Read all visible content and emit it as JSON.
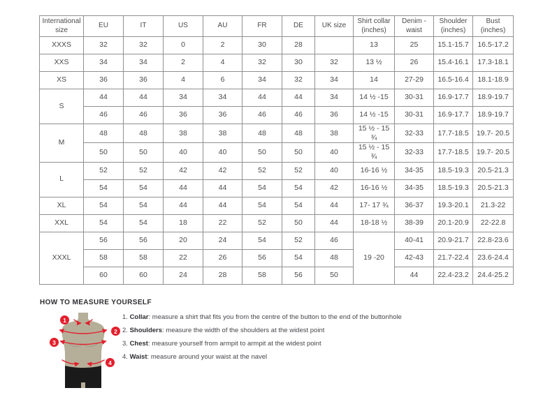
{
  "colors": {
    "accent_red": "#e41e2c",
    "body_tan": "#b5af99",
    "shorts_black": "#1a1a1a",
    "table_border": "#909090",
    "text_dark": "#4b4b4b",
    "heading_color": "#2d2d31"
  },
  "table": {
    "columns": [
      "International size",
      "EU",
      "IT",
      "US",
      "AU",
      "FR",
      "DE",
      "UK size",
      "Shirt collar (inches)",
      "Denim - waist",
      "Shoulder (inches)",
      "Bust (inches)"
    ],
    "rows": [
      {
        "cells": [
          {
            "t": "XXXS"
          },
          {
            "t": "32"
          },
          {
            "t": "32"
          },
          {
            "t": "0"
          },
          {
            "t": "2"
          },
          {
            "t": "30"
          },
          {
            "t": "28"
          },
          {
            "t": ""
          },
          {
            "t": "13"
          },
          {
            "t": "25"
          },
          {
            "t": "15.1-15.7"
          },
          {
            "t": "16.5-17.2"
          }
        ]
      },
      {
        "cells": [
          {
            "t": "XXS"
          },
          {
            "t": "34"
          },
          {
            "t": "34"
          },
          {
            "t": "2"
          },
          {
            "t": "4"
          },
          {
            "t": "32"
          },
          {
            "t": "30"
          },
          {
            "t": "32"
          },
          {
            "t": "13 ½"
          },
          {
            "t": "26"
          },
          {
            "t": "15.4-16.1"
          },
          {
            "t": "17.3-18.1"
          }
        ]
      },
      {
        "cells": [
          {
            "t": "XS"
          },
          {
            "t": "36"
          },
          {
            "t": "36"
          },
          {
            "t": "4"
          },
          {
            "t": "6"
          },
          {
            "t": "34"
          },
          {
            "t": "32"
          },
          {
            "t": "34"
          },
          {
            "t": "14"
          },
          {
            "t": "27-29"
          },
          {
            "t": "16.5-16.4"
          },
          {
            "t": "18.1-18.9"
          }
        ]
      },
      {
        "cells": [
          {
            "t": "S",
            "rs": 2
          },
          {
            "t": "44"
          },
          {
            "t": "44"
          },
          {
            "t": "34"
          },
          {
            "t": "34"
          },
          {
            "t": "44"
          },
          {
            "t": "44"
          },
          {
            "t": "34"
          },
          {
            "t": "14 ½ -15"
          },
          {
            "t": "30-31"
          },
          {
            "t": "16.9-17.7"
          },
          {
            "t": "18.9-19.7"
          }
        ]
      },
      {
        "cells": [
          {
            "t": "46"
          },
          {
            "t": "46"
          },
          {
            "t": "36"
          },
          {
            "t": "36"
          },
          {
            "t": "46"
          },
          {
            "t": "46"
          },
          {
            "t": "36"
          },
          {
            "t": "14 ½ -15"
          },
          {
            "t": "30-31"
          },
          {
            "t": "16.9-17.7"
          },
          {
            "t": "18.9-19.7"
          }
        ]
      },
      {
        "cells": [
          {
            "t": "M",
            "rs": 2
          },
          {
            "t": "48"
          },
          {
            "t": "48"
          },
          {
            "t": "38"
          },
          {
            "t": "38"
          },
          {
            "t": "48"
          },
          {
            "t": "48"
          },
          {
            "t": "38"
          },
          {
            "t": "15 ½ - 15 ¾"
          },
          {
            "t": "32-33"
          },
          {
            "t": "17.7-18.5"
          },
          {
            "t": "19.7- 20.5"
          }
        ]
      },
      {
        "cells": [
          {
            "t": "50"
          },
          {
            "t": "50"
          },
          {
            "t": "40"
          },
          {
            "t": "40"
          },
          {
            "t": "50"
          },
          {
            "t": "50"
          },
          {
            "t": "40"
          },
          {
            "t": "15 ½ - 15 ¾"
          },
          {
            "t": "32-33"
          },
          {
            "t": "17.7-18.5"
          },
          {
            "t": "19.7- 20.5"
          }
        ]
      },
      {
        "cells": [
          {
            "t": "L",
            "rs": 2
          },
          {
            "t": "52"
          },
          {
            "t": "52"
          },
          {
            "t": "42"
          },
          {
            "t": "42"
          },
          {
            "t": "52"
          },
          {
            "t": "52"
          },
          {
            "t": "40"
          },
          {
            "t": "16-16 ½"
          },
          {
            "t": "34-35"
          },
          {
            "t": "18.5-19.3"
          },
          {
            "t": "20.5-21.3"
          }
        ]
      },
      {
        "cells": [
          {
            "t": "54"
          },
          {
            "t": "54"
          },
          {
            "t": "44"
          },
          {
            "t": "44"
          },
          {
            "t": "54"
          },
          {
            "t": "54"
          },
          {
            "t": "42"
          },
          {
            "t": "16-16 ½"
          },
          {
            "t": "34-35"
          },
          {
            "t": "18.5-19.3"
          },
          {
            "t": "20.5-21.3"
          }
        ]
      },
      {
        "cells": [
          {
            "t": "XL"
          },
          {
            "t": "54"
          },
          {
            "t": "54"
          },
          {
            "t": "44"
          },
          {
            "t": "44"
          },
          {
            "t": "54"
          },
          {
            "t": "54"
          },
          {
            "t": "44"
          },
          {
            "t": "17- 17 ¾"
          },
          {
            "t": "36-37"
          },
          {
            "t": "19.3-20.1"
          },
          {
            "t": "21.3-22"
          }
        ]
      },
      {
        "cells": [
          {
            "t": "XXL"
          },
          {
            "t": "54"
          },
          {
            "t": "54"
          },
          {
            "t": "18"
          },
          {
            "t": "22"
          },
          {
            "t": "52"
          },
          {
            "t": "50"
          },
          {
            "t": "44"
          },
          {
            "t": "18-18 ½"
          },
          {
            "t": "38-39"
          },
          {
            "t": "20.1-20.9"
          },
          {
            "t": "22-22.8"
          }
        ]
      },
      {
        "cells": [
          {
            "t": "XXXL",
            "rs": 3
          },
          {
            "t": "56"
          },
          {
            "t": "56"
          },
          {
            "t": "20"
          },
          {
            "t": "24"
          },
          {
            "t": "54"
          },
          {
            "t": "52"
          },
          {
            "t": "46"
          },
          {
            "t": "19 -20",
            "rs": 3
          },
          {
            "t": "40-41"
          },
          {
            "t": "20.9-21.7"
          },
          {
            "t": "22.8-23.6"
          }
        ]
      },
      {
        "cells": [
          {
            "t": "58"
          },
          {
            "t": "58"
          },
          {
            "t": "22"
          },
          {
            "t": "26"
          },
          {
            "t": "56"
          },
          {
            "t": "54"
          },
          {
            "t": "48"
          },
          {
            "t": "42-43"
          },
          {
            "t": "21.7-22.4"
          },
          {
            "t": "23.6-24.4"
          }
        ]
      },
      {
        "cells": [
          {
            "t": "60"
          },
          {
            "t": "60"
          },
          {
            "t": "24"
          },
          {
            "t": "28"
          },
          {
            "t": "58"
          },
          {
            "t": "56"
          },
          {
            "t": "50"
          },
          {
            "t": "44"
          },
          {
            "t": "22.4-23.2"
          },
          {
            "t": "24.4-25.2"
          }
        ]
      }
    ]
  },
  "measure": {
    "heading": "HOW TO MEASURE YOURSELF",
    "steps": [
      {
        "badge": "1",
        "num": "1.",
        "label": "Collar",
        "text": ": measure a shirt that fits you from the centre of the button to the end of the buttonhole"
      },
      {
        "badge": "2",
        "num": "2.",
        "label": "Shoulders",
        "text": ": measure the width of the shoulders at the widest point"
      },
      {
        "badge": "3",
        "num": "3.",
        "label": "Chest",
        "text": ": measure yourself from armpit to armpit at the widest point"
      },
      {
        "badge": "4",
        "num": "4.",
        "label": "Waist",
        "text": ": measure around your waist at the navel"
      }
    ]
  }
}
